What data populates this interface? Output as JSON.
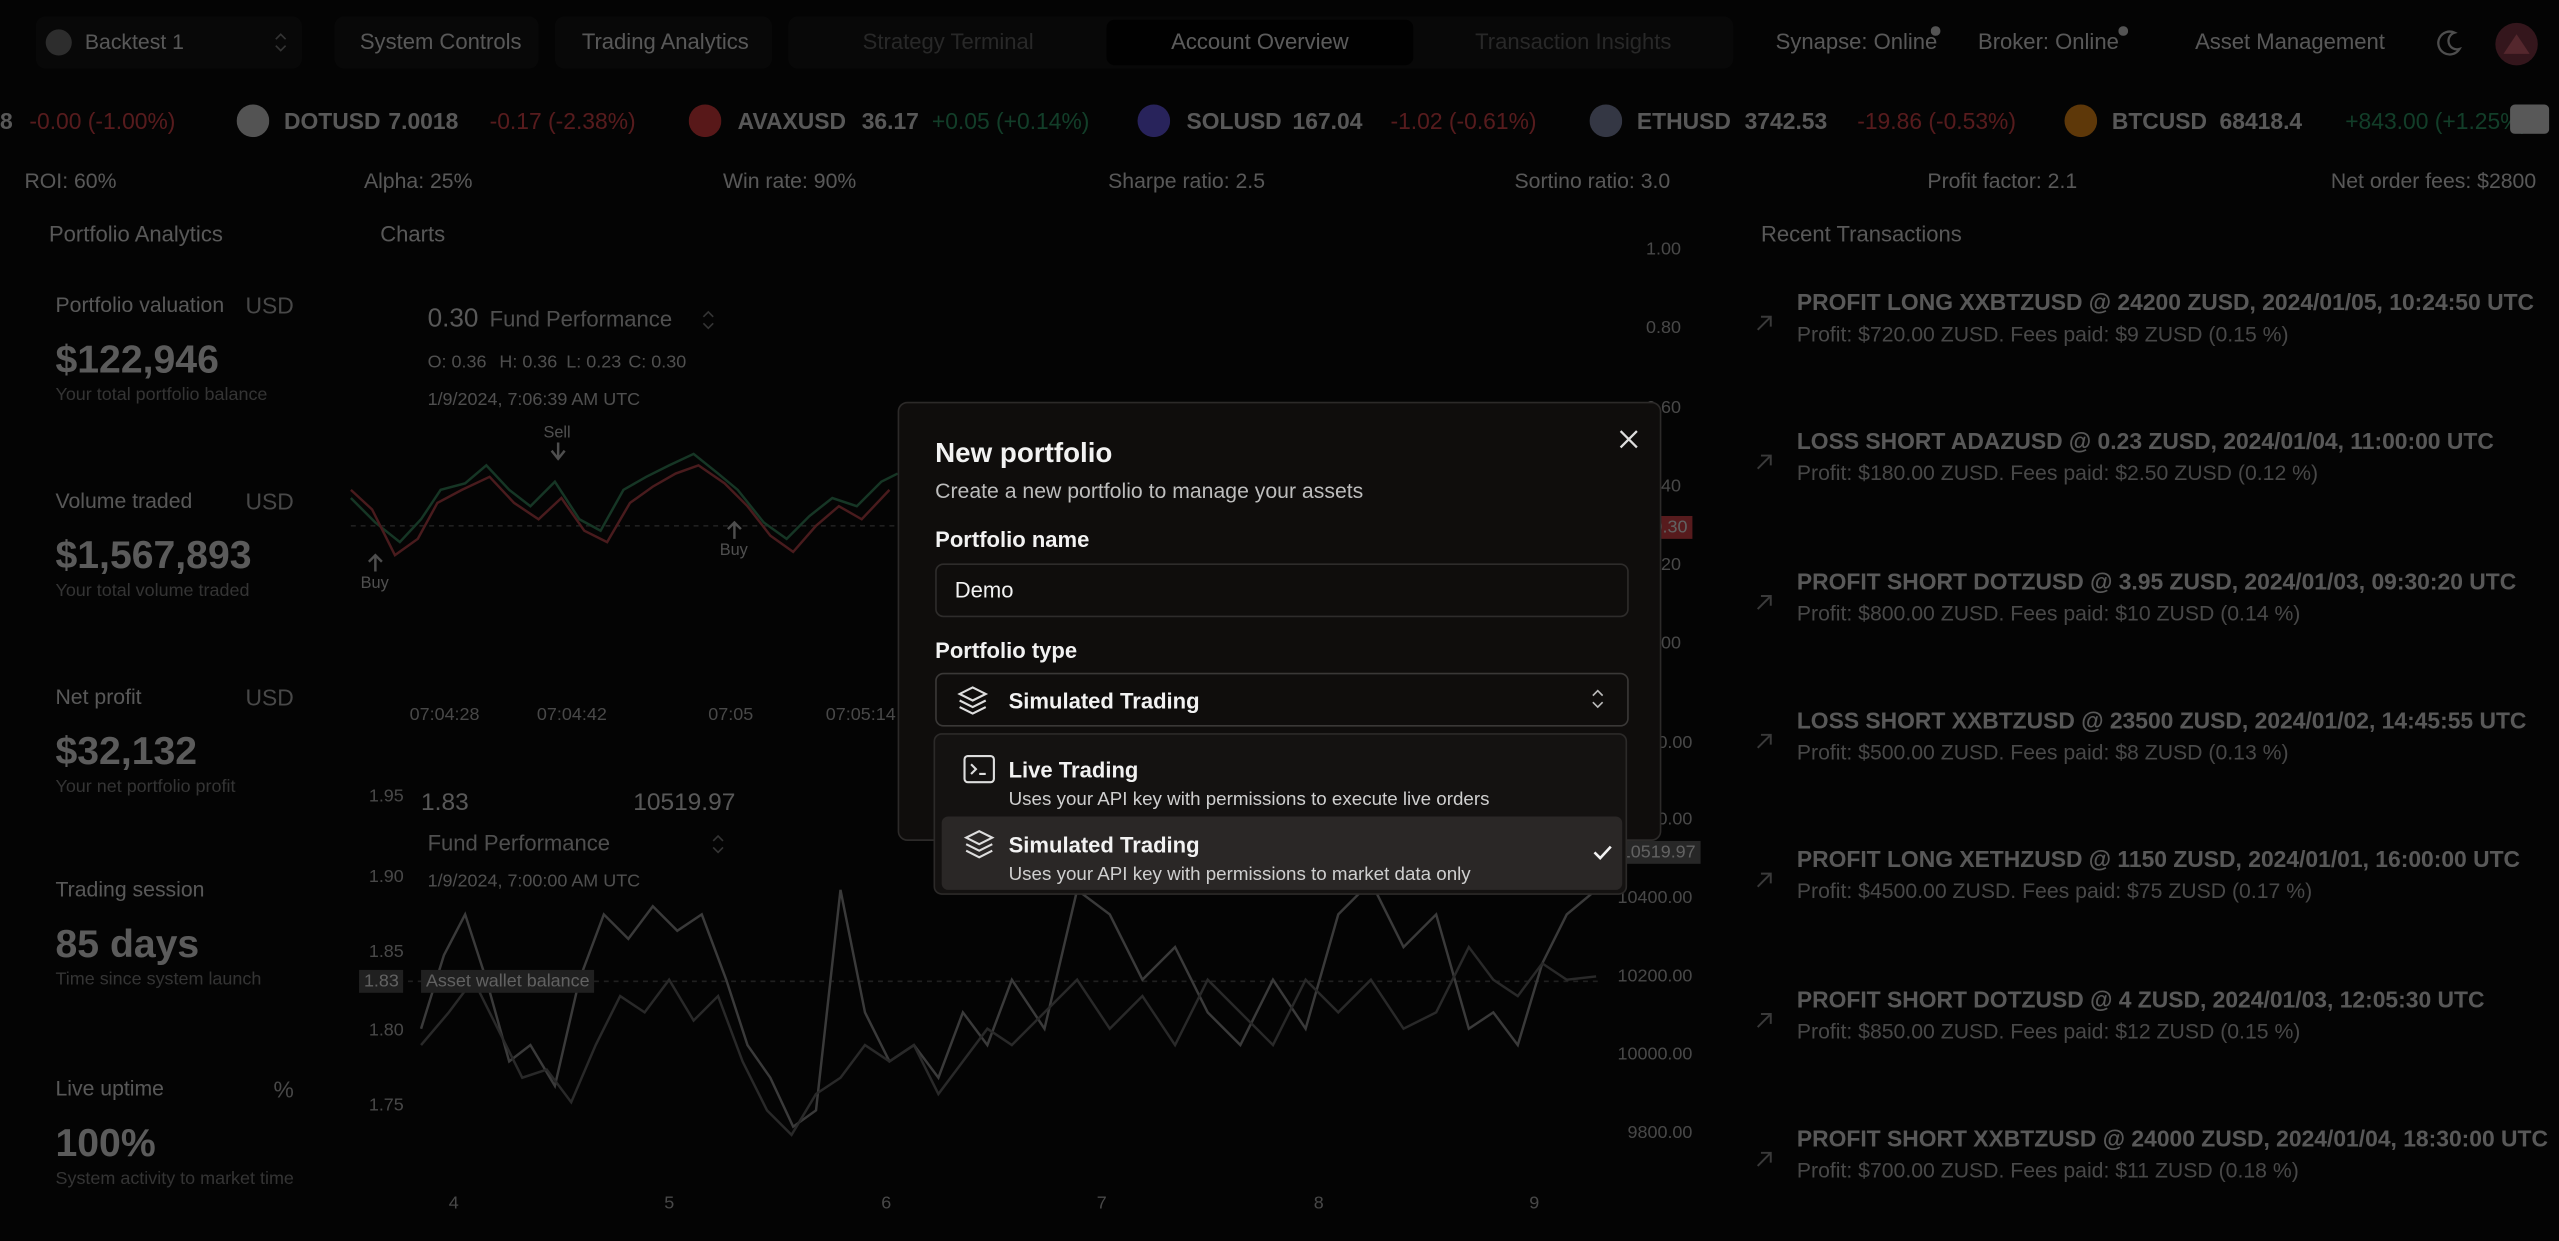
{
  "nav": {
    "workspace": "Backtest 1",
    "links": [
      "System Controls",
      "Trading Analytics"
    ],
    "views": [
      "Strategy Terminal",
      "Account Overview",
      "Transaction Insights"
    ],
    "active_view": 1,
    "status": [
      "Synapse: Online",
      "Broker: Online"
    ],
    "asset_management": "Asset Management"
  },
  "ticker": {
    "lead": {
      "price": "8",
      "change": "-0.00 (-1.00%)",
      "direction": "down"
    },
    "items": [
      {
        "symbol": "DOTUSD",
        "price": "7.0018",
        "change": "-0.17 (-2.38%)",
        "direction": "down",
        "color": "#d9d9d9"
      },
      {
        "symbol": "AVAXUSD",
        "price": "36.17",
        "change": "+0.05 (+0.14%)",
        "direction": "up",
        "color": "#e84142"
      },
      {
        "symbol": "SOLUSD",
        "price": "167.04",
        "change": "-1.02 (-0.61%)",
        "direction": "down",
        "color": "#6b5cf0"
      },
      {
        "symbol": "ETHUSD",
        "price": "3742.53",
        "change": "-19.86 (-0.53%)",
        "direction": "down",
        "color": "#8a92b2"
      },
      {
        "symbol": "BTCUSD",
        "price": "68418.4",
        "change": "+843.00 (+1.25%)",
        "direction": "up",
        "color": "#f7931a"
      }
    ]
  },
  "stats": [
    "ROI: 60%",
    "Alpha: 25%",
    "Win rate: 90%",
    "Sharpe ratio: 2.5",
    "Sortino ratio: 3.0",
    "Profit factor: 2.1",
    "Net order fees: $2800"
  ],
  "portfolio_analytics": {
    "title": "Portfolio Analytics",
    "cards": [
      {
        "label": "Portfolio valuation",
        "unit": "USD",
        "value": "$122,946",
        "caption": "Your total portfolio balance"
      },
      {
        "label": "Volume traded",
        "unit": "USD",
        "value": "$1,567,893",
        "caption": "Your total volume traded"
      },
      {
        "label": "Net profit",
        "unit": "USD",
        "value": "$32,132",
        "caption": "Your net portfolio profit"
      },
      {
        "label": "Trading session",
        "value": "85 days",
        "caption": "Time since system launch"
      },
      {
        "label": "Live uptime",
        "unit": "%",
        "value": "100%",
        "caption": "System activity to market time"
      }
    ]
  },
  "charts": {
    "title": "Charts",
    "price": {
      "legend_value": "0.30",
      "legend_name": "Fund Performance",
      "ohlc": [
        "O: 0.36",
        "H: 0.36",
        "L: 0.23",
        "C: 0.30"
      ],
      "date": "1/9/2024, 7:06:39 AM UTC",
      "axis": [
        "1.00",
        "0.80",
        "0.60",
        "0.40",
        "0.20",
        "0.00"
      ],
      "last_price": "0.30",
      "time_axis": [
        "07:04:28",
        "07:04:42",
        "07:05",
        "07:05:14"
      ],
      "markers": [
        "Sell",
        "Buy",
        "Buy"
      ]
    },
    "balance": {
      "left_value": "1.83",
      "right_value": "10519.97",
      "legend_name": "Fund Performance",
      "date": "1/9/2024, 7:00:00 AM UTC",
      "left_axis": [
        "1.95",
        "1.90",
        "1.85",
        "1.80",
        "1.75"
      ],
      "right_axis": [
        "10800.00",
        "10600.00",
        "10400.00",
        "10200.00",
        "10000.00",
        "9800.00"
      ],
      "last_left": "1.83",
      "last_right": "10519.97",
      "series_label": "Asset wallet balance",
      "x_axis": [
        "4",
        "5",
        "6",
        "7",
        "8",
        "9"
      ]
    }
  },
  "recent_transactions": {
    "title": "Recent Transactions",
    "items": [
      {
        "title": "PROFIT LONG XXBTZUSD @ 24200 ZUSD, 2024/01/05, 10:24:50 UTC",
        "detail": "Profit: $720.00 ZUSD. Fees paid: $9 ZUSD (0.15 %)"
      },
      {
        "title": "LOSS SHORT ADAZUSD @ 0.23 ZUSD, 2024/01/04, 11:00:00 UTC",
        "detail": "Profit: $180.00 ZUSD. Fees paid: $2.50 ZUSD (0.12 %)"
      },
      {
        "title": "PROFIT SHORT DOTZUSD @ 3.95 ZUSD, 2024/01/03, 09:30:20 UTC",
        "detail": "Profit: $800.00 ZUSD. Fees paid: $10 ZUSD (0.14 %)"
      },
      {
        "title": "LOSS SHORT XXBTZUSD @ 23500 ZUSD, 2024/01/02, 14:45:55 UTC",
        "detail": "Profit: $500.00 ZUSD. Fees paid: $8 ZUSD (0.13 %)"
      },
      {
        "title": "PROFIT LONG XETHZUSD @ 1150 ZUSD, 2024/01/01, 16:00:00 UTC",
        "detail": "Profit: $4500.00 ZUSD. Fees paid: $75 ZUSD (0.17 %)"
      },
      {
        "title": "PROFIT SHORT DOTZUSD @ 4 ZUSD, 2024/01/03, 12:05:30 UTC",
        "detail": "Profit: $850.00 ZUSD. Fees paid: $12 ZUSD (0.15 %)"
      },
      {
        "title": "PROFIT SHORT XXBTZUSD @ 24000 ZUSD, 2024/01/04, 18:30:00 UTC",
        "detail": "Profit: $700.00 ZUSD. Fees paid: $11 ZUSD (0.18 %)"
      }
    ]
  },
  "modal": {
    "title": "New portfolio",
    "subtitle": "Create a new portfolio to manage your assets",
    "name_label": "Portfolio name",
    "name_value": "Demo",
    "type_label": "Portfolio type",
    "type_value": "Simulated Trading",
    "options": [
      {
        "title": "Live Trading",
        "description": "Uses your API key with permissions to execute live orders",
        "icon": "terminal",
        "selected": false
      },
      {
        "title": "Simulated Trading",
        "description": "Uses your API key with permissions to market data only",
        "icon": "layers",
        "selected": true
      }
    ]
  }
}
